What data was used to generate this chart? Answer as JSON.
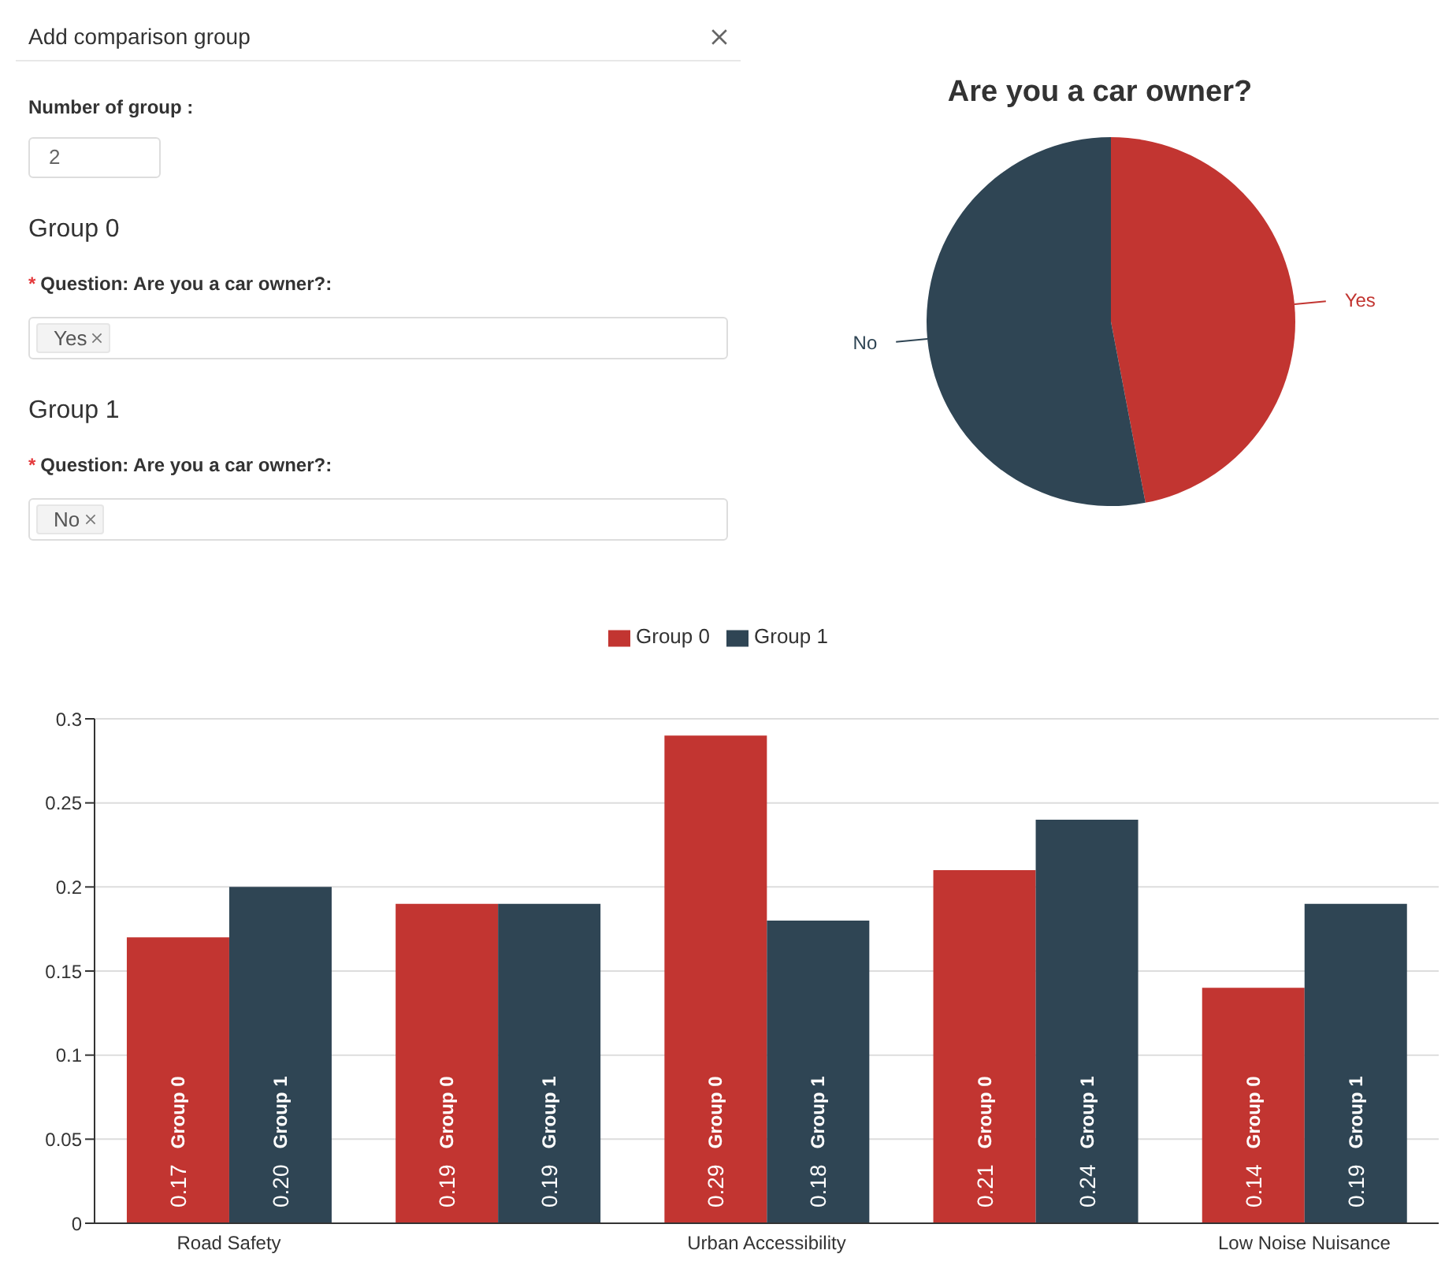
{
  "chart_data": [
    {
      "type": "other",
      "title": "Add comparison group",
      "annotations": [
        "Number of group :",
        "2",
        "Group 0",
        "*",
        "Question: Are you a car owner?:",
        "Yes",
        "Group 1",
        "*",
        "Question: Are you a car owner?:",
        "No"
      ]
    },
    {
      "type": "pie",
      "title": "Are you a car owner?",
      "categories": [
        "Yes",
        "No"
      ],
      "values": [
        47,
        53
      ],
      "colors": [
        "#c23531",
        "#2f4554"
      ]
    },
    {
      "type": "bar",
      "categories": [
        "Road Safety",
        null,
        "Urban Accessibility",
        null,
        "Low Noise Nuisance"
      ],
      "series": [
        {
          "name": "Group 0",
          "color": "#c23531",
          "values": [
            0.17,
            0.19,
            0.29,
            0.21,
            0.14
          ],
          "value_labels": [
            "0.17",
            "0.19",
            "0.29",
            "0.21",
            "0.14"
          ]
        },
        {
          "name": "Group 1",
          "color": "#2f4554",
          "values": [
            0.2,
            0.19,
            0.18,
            0.24,
            0.19
          ],
          "value_labels": [
            "0.20",
            "0.19",
            "0.18",
            "0.24",
            "0.19"
          ]
        }
      ],
      "ylim": [
        0,
        0.3
      ],
      "yticks": [
        0,
        0.05,
        0.1,
        0.15,
        0.2,
        0.25,
        0.3
      ],
      "grid": "y",
      "legend": "top"
    }
  ]
}
